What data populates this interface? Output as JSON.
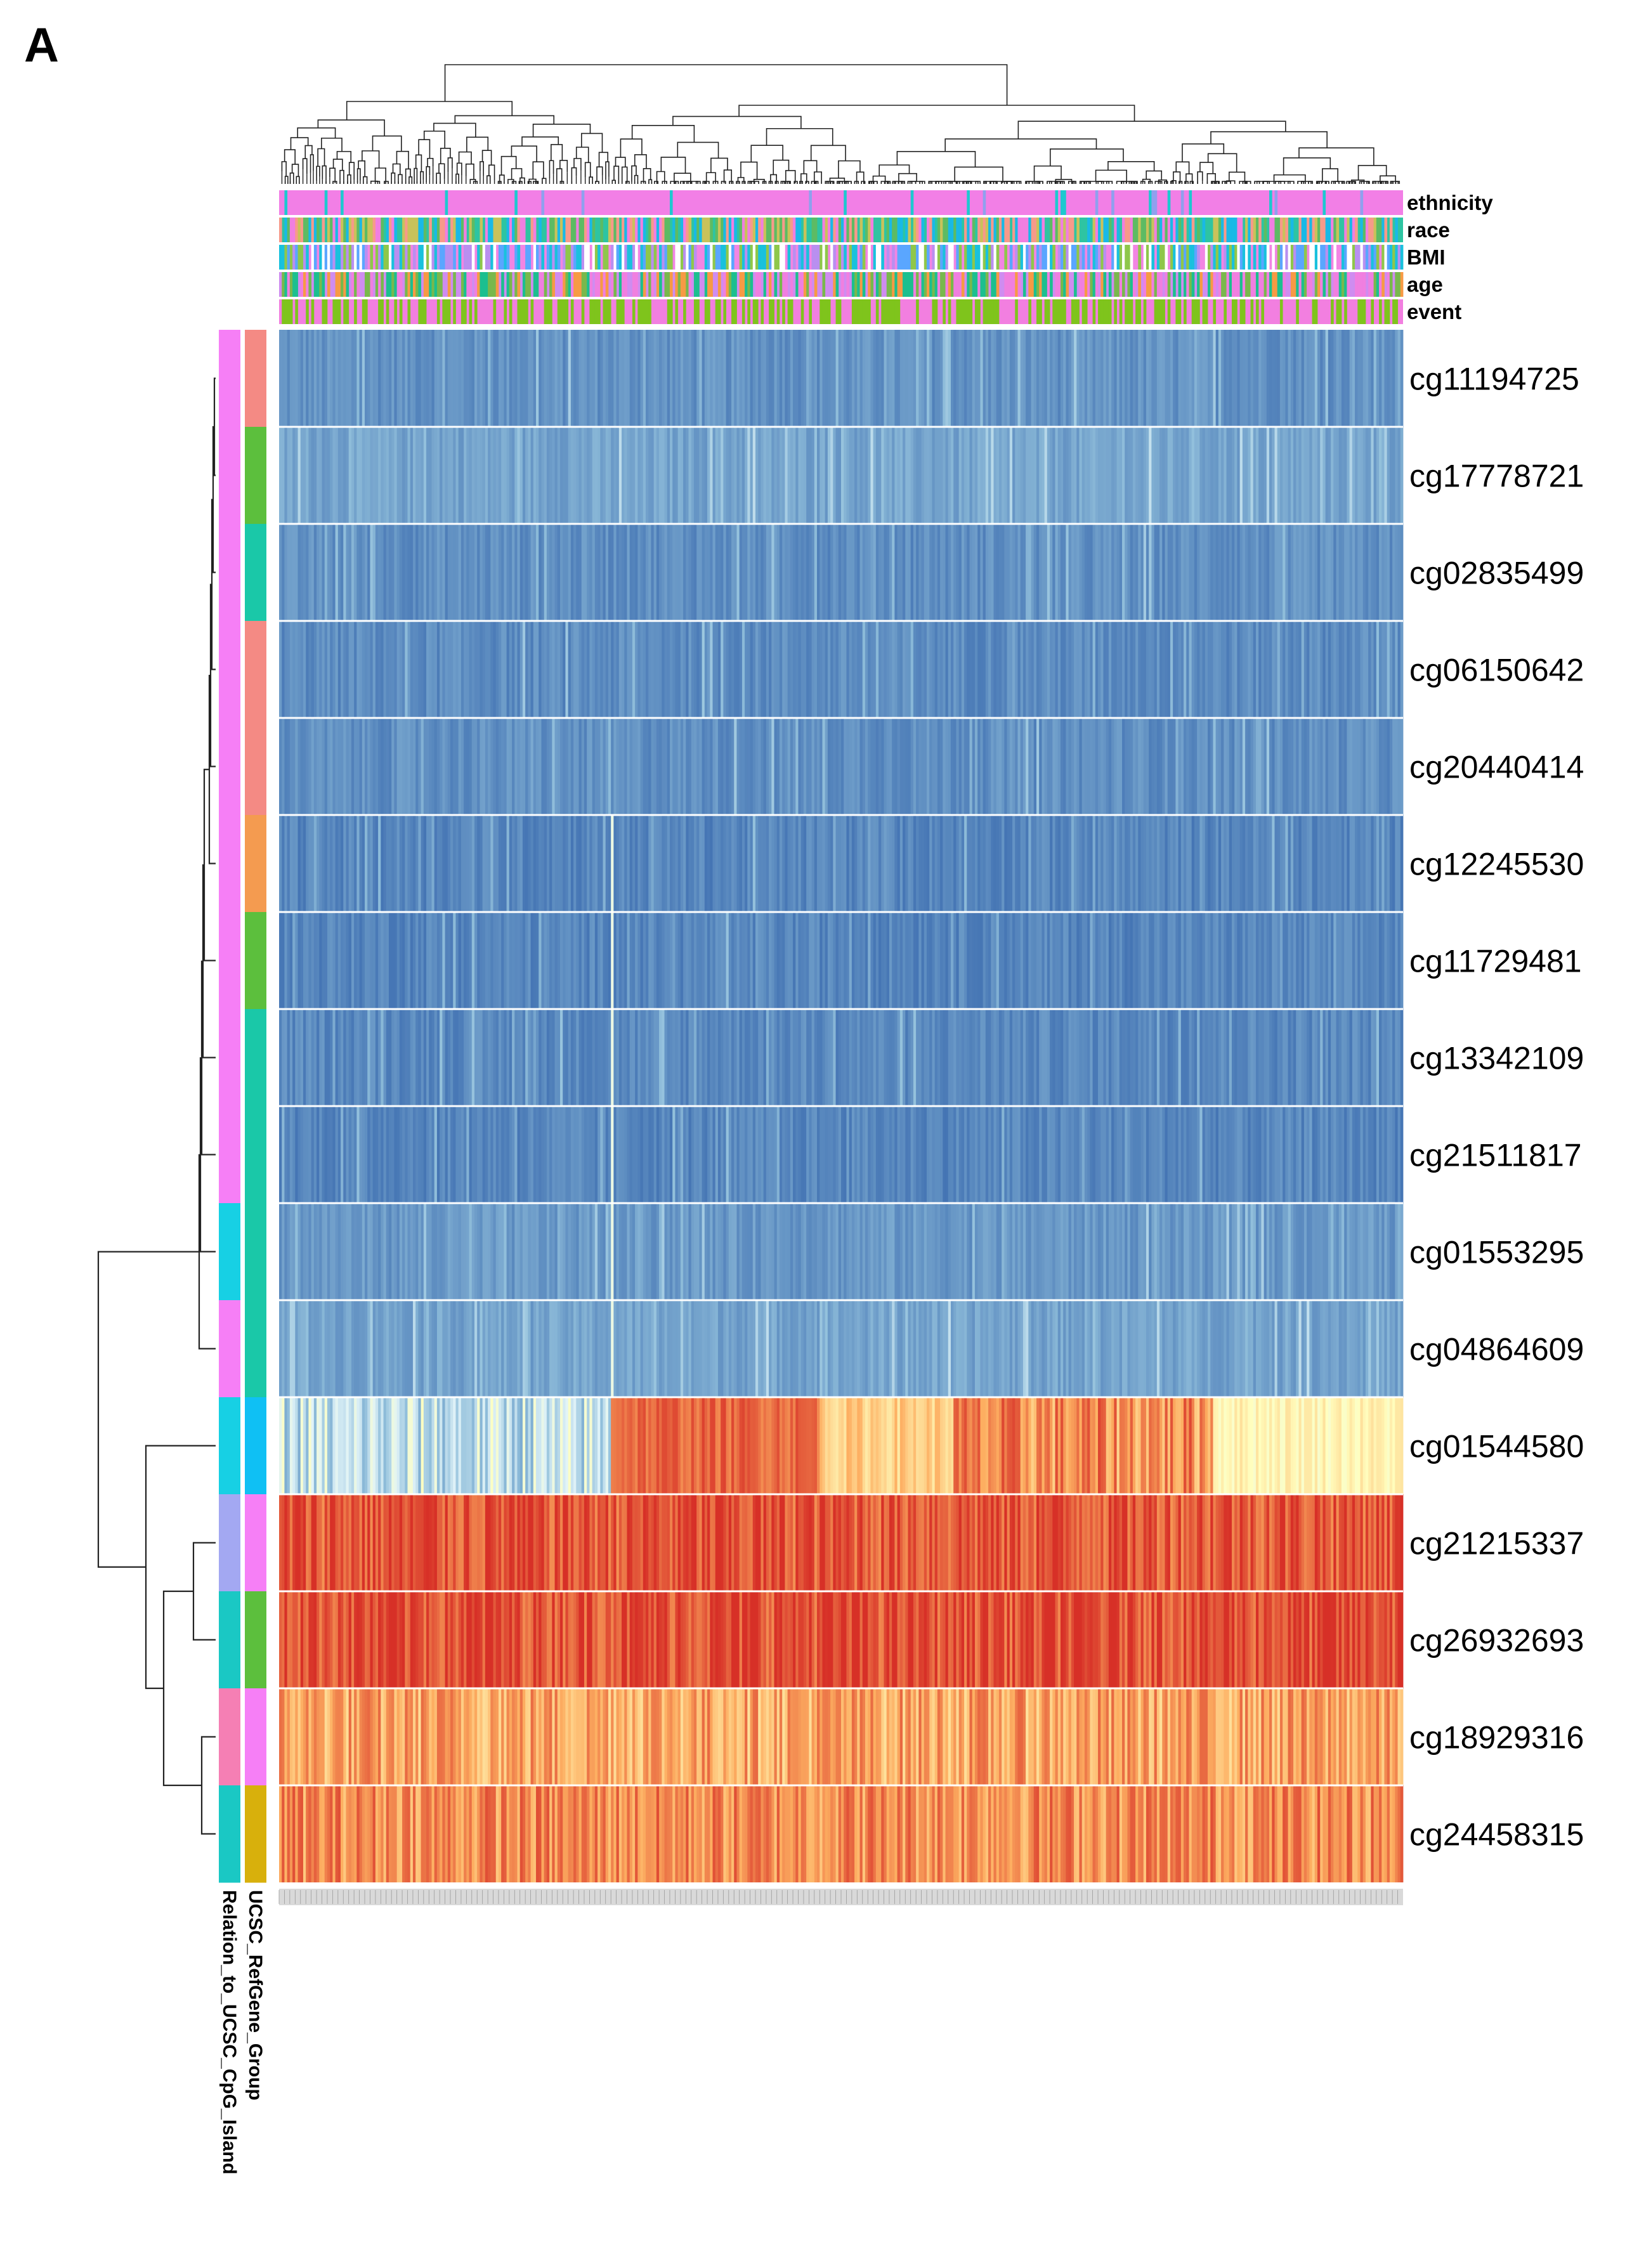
{
  "panel_letter": "A",
  "chart_data": {
    "type": "heatmap",
    "title": "",
    "n_samples": 420,
    "column_annotations": [
      {
        "name": "ethnicity",
        "palette": [
          "#f27fe6",
          "#1ec8d0",
          "#8fa0ee"
        ]
      },
      {
        "name": "race",
        "palette": [
          "#2ec4a2",
          "#f07fe0",
          "#f79a8a",
          "#c9c25a",
          "#5dbb63",
          "#19b9e6"
        ]
      },
      {
        "name": "BMI",
        "palette": [
          "#f285e3",
          "#5aa6ff",
          "#b98ff0",
          "#19c1dd",
          "#8fc74a",
          "#ffffff"
        ]
      },
      {
        "name": "age",
        "palette": [
          "#cf8cf0",
          "#1cbf8f",
          "#f79a44",
          "#79b84c",
          "#f07fe0"
        ]
      },
      {
        "name": "event",
        "palette": [
          "#f27fe0",
          "#7fc41c"
        ]
      }
    ],
    "row_annotation_titles": [
      "Relation_to_UCSC_CpG_Island",
      "UCSC_RefGene_Group"
    ],
    "rows": [
      {
        "probe": "cg11194725",
        "cpg_island": "#f67ff6",
        "refgene": "#f48a84",
        "mean": 0.1,
        "pattern": "low"
      },
      {
        "probe": "cg17778721",
        "cpg_island": "#f67ff6",
        "refgene": "#5cbf3d",
        "mean": 0.16,
        "pattern": "low"
      },
      {
        "probe": "cg02835499",
        "cpg_island": "#f67ff6",
        "refgene": "#1ac8a8",
        "mean": 0.09,
        "pattern": "low"
      },
      {
        "probe": "cg06150642",
        "cpg_island": "#f67ff6",
        "refgene": "#f48a84",
        "mean": 0.08,
        "pattern": "low"
      },
      {
        "probe": "cg20440414",
        "cpg_island": "#f67ff6",
        "refgene": "#f48a84",
        "mean": 0.09,
        "pattern": "low"
      },
      {
        "probe": "cg12245530",
        "cpg_island": "#f67ff6",
        "refgene": "#f49b50",
        "mean": 0.06,
        "pattern": "low"
      },
      {
        "probe": "cg11729481",
        "cpg_island": "#f67ff6",
        "refgene": "#5cbf3d",
        "mean": 0.06,
        "pattern": "low"
      },
      {
        "probe": "cg13342109",
        "cpg_island": "#f67ff6",
        "refgene": "#1ac8a8",
        "mean": 0.07,
        "pattern": "low"
      },
      {
        "probe": "cg21511817",
        "cpg_island": "#f67ff6",
        "refgene": "#1ac8a8",
        "mean": 0.06,
        "pattern": "low"
      },
      {
        "probe": "cg01553295",
        "cpg_island": "#17d0e4",
        "refgene": "#1ac8a8",
        "mean": 0.12,
        "pattern": "low"
      },
      {
        "probe": "cg04864609",
        "cpg_island": "#f67ff6",
        "refgene": "#1ac8a8",
        "mean": 0.16,
        "pattern": "low"
      },
      {
        "probe": "cg01544580",
        "cpg_island": "#17d0e4",
        "refgene": "#0fc0f4",
        "mean": 0.5,
        "pattern": "mixed"
      },
      {
        "probe": "cg21215337",
        "cpg_island": "#a3a8f2",
        "refgene": "#f67ff6",
        "mean": 0.93,
        "pattern": "high"
      },
      {
        "probe": "cg26932693",
        "cpg_island": "#1ac8c4",
        "refgene": "#5cbf3d",
        "mean": 0.95,
        "pattern": "high"
      },
      {
        "probe": "cg18929316",
        "cpg_island": "#f57fb4",
        "refgene": "#f67ff6",
        "mean": 0.74,
        "pattern": "high"
      },
      {
        "probe": "cg24458315",
        "cpg_island": "#1ac8c4",
        "refgene": "#d8b00c",
        "mean": 0.8,
        "pattern": "high"
      }
    ],
    "color_scale": {
      "type": "diverging",
      "low": "#4575b4",
      "mid_low": "#e0f3f8",
      "mid": "#ffffbf",
      "mid_high": "#fdae61",
      "high": "#d73027"
    }
  }
}
